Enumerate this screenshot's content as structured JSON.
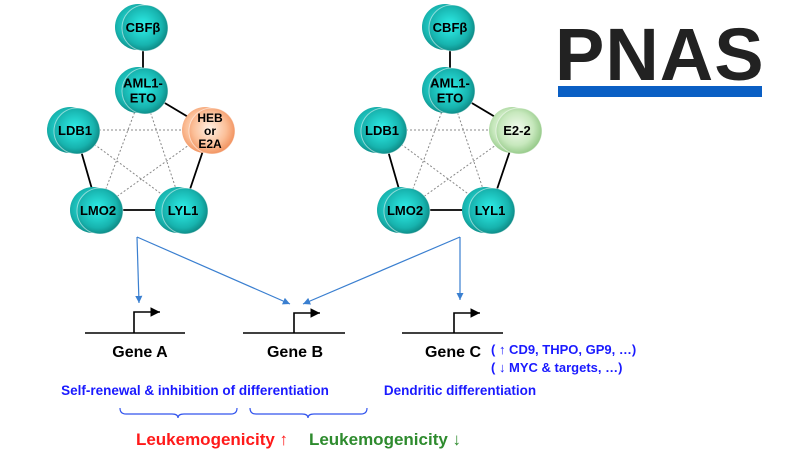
{
  "logo": {
    "text": "PNAS",
    "bar_color": "#0a5fc4",
    "text_color": "#222222"
  },
  "networks": [
    {
      "nodes": [
        {
          "id": "cbfb",
          "lines": [
            "CBFβ"
          ],
          "color": "teal"
        },
        {
          "id": "aml1",
          "lines": [
            "AML1-",
            "ETO"
          ],
          "color": "teal"
        },
        {
          "id": "ldb1",
          "lines": [
            "LDB1"
          ],
          "color": "teal"
        },
        {
          "id": "eprot",
          "lines": [
            "HEB",
            "or",
            "E2A"
          ],
          "color": "orange"
        },
        {
          "id": "lmo2",
          "lines": [
            "LMO2"
          ],
          "color": "teal"
        },
        {
          "id": "lyl1",
          "lines": [
            "LYL1"
          ],
          "color": "teal"
        }
      ]
    },
    {
      "nodes": [
        {
          "id": "cbfb",
          "lines": [
            "CBFβ"
          ],
          "color": "teal"
        },
        {
          "id": "aml1",
          "lines": [
            "AML1-",
            "ETO"
          ],
          "color": "teal"
        },
        {
          "id": "ldb1",
          "lines": [
            "LDB1"
          ],
          "color": "teal"
        },
        {
          "id": "eprot",
          "lines": [
            "E2-2"
          ],
          "color": "green"
        },
        {
          "id": "lmo2",
          "lines": [
            "LMO2"
          ],
          "color": "teal"
        },
        {
          "id": "lyl1",
          "lines": [
            "LYL1"
          ],
          "color": "teal"
        }
      ]
    }
  ],
  "genes": [
    {
      "label": "Gene A"
    },
    {
      "label": "Gene B"
    },
    {
      "label": "Gene C"
    }
  ],
  "gene_c_targets": [
    "( ↑ CD9, THPO, GP9, …)",
    "( ↓ MYC & targets, …)"
  ],
  "outcomes": {
    "left": "Self-renewal & inhibition of differentiation",
    "right": "Dendritic differentiation"
  },
  "leukemogenicity": {
    "up": "Leukemogenicity ↑",
    "down": "Leukemogenicity ↓",
    "up_color": "#ff1a1a",
    "down_color": "#2e8b2e"
  },
  "colors": {
    "teal": "#1fb5b0",
    "orange": "#f7a070",
    "green": "#a8d8a0",
    "blue_text": "#1a1aff",
    "arrow": "#3a7fd0"
  }
}
